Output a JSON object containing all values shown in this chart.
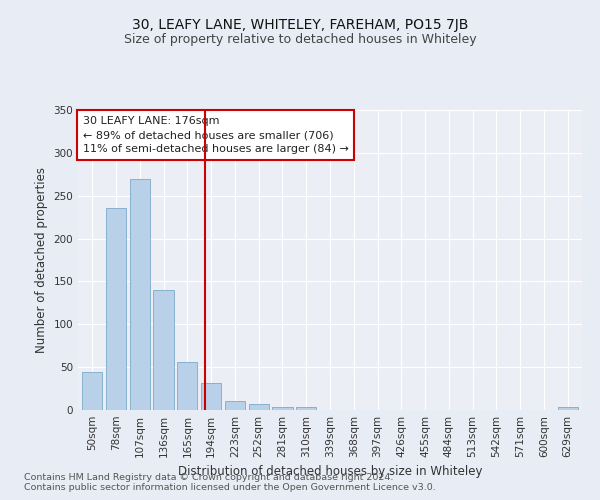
{
  "title": "30, LEAFY LANE, WHITELEY, FAREHAM, PO15 7JB",
  "subtitle": "Size of property relative to detached houses in Whiteley",
  "xlabel": "Distribution of detached houses by size in Whiteley",
  "ylabel": "Number of detached properties",
  "footnote1": "Contains HM Land Registry data © Crown copyright and database right 2024.",
  "footnote2": "Contains public sector information licensed under the Open Government Licence v3.0.",
  "categories": [
    "50sqm",
    "78sqm",
    "107sqm",
    "136sqm",
    "165sqm",
    "194sqm",
    "223sqm",
    "252sqm",
    "281sqm",
    "310sqm",
    "339sqm",
    "368sqm",
    "397sqm",
    "426sqm",
    "455sqm",
    "484sqm",
    "513sqm",
    "542sqm",
    "571sqm",
    "600sqm",
    "629sqm"
  ],
  "values": [
    44,
    236,
    269,
    140,
    56,
    32,
    10,
    7,
    3,
    4,
    0,
    0,
    0,
    0,
    0,
    0,
    0,
    0,
    0,
    0,
    3
  ],
  "bar_color": "#b8d0e8",
  "bar_edge_color": "#7aaac8",
  "vline_x": 4.73,
  "vline_color": "#cc0000",
  "annotation_text": "30 LEAFY LANE: 176sqm\n← 89% of detached houses are smaller (706)\n11% of semi-detached houses are larger (84) →",
  "annotation_box_color": "#ffffff",
  "annotation_box_edge": "#cc0000",
  "ylim": [
    0,
    350
  ],
  "yticks": [
    0,
    50,
    100,
    150,
    200,
    250,
    300,
    350
  ],
  "bg_color": "#e8ecf4",
  "plot_bg_color": "#eceef6",
  "grid_color": "#ffffff",
  "title_fontsize": 10,
  "subtitle_fontsize": 9,
  "axis_label_fontsize": 8.5,
  "tick_fontsize": 7.5,
  "annotation_fontsize": 8,
  "footnote_fontsize": 6.8
}
